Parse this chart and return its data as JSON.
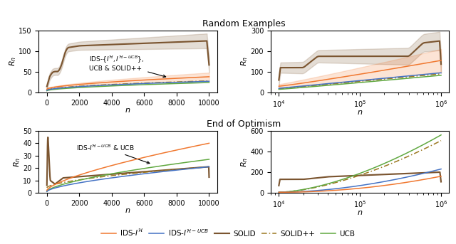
{
  "title_top": "Random Examples",
  "title_bottom": "End of Optimism",
  "colors": {
    "IDS_H": "#F07830",
    "IDS_H_UCB": "#4472C4",
    "SOLID": "#7B5530",
    "SOLID_pp": "#9B7820",
    "UCB": "#60A840"
  },
  "annot_TL": "IDS-$\\{I^{\\mathcal{H}}, I^{\\mathcal{H}-UCB}\\}$,\nUCB & SOLID++",
  "annot_BL": "IDS-$I^{\\mathcal{H}-UCB}$ & UCB"
}
